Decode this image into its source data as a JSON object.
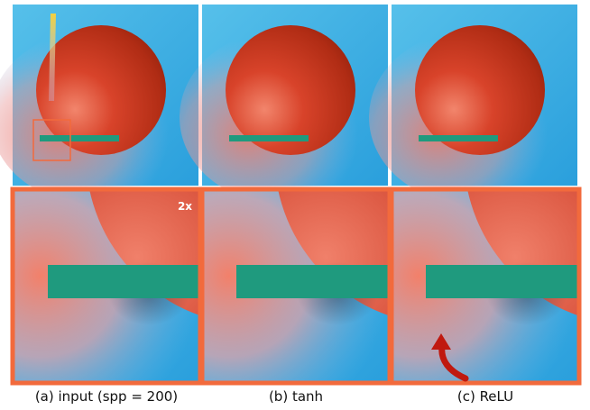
{
  "panels": [
    {
      "caption": "(a) input (spp = 200)",
      "zoom_label": "2x"
    },
    {
      "caption": "(b) tanh"
    },
    {
      "caption": "(c) ReLU"
    }
  ]
}
